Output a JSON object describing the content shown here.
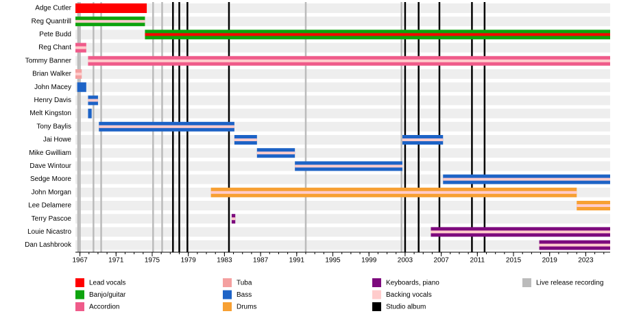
{
  "chart_data": {
    "type": "timeline",
    "xlim": [
      1966.5,
      2025.7
    ],
    "xticks": [
      1967,
      1971,
      1975,
      1979,
      1983,
      1987,
      1991,
      1995,
      1999,
      2003,
      2007,
      2011,
      2015,
      2019,
      2023
    ],
    "roles": [
      {
        "name": "Lead vocals",
        "color": "#ff0000"
      },
      {
        "name": "Banjo/guitar",
        "color": "#0ea30e"
      },
      {
        "name": "Accordion",
        "color": "#ef5b8a"
      },
      {
        "name": "Tuba",
        "color": "#f4a0a0"
      },
      {
        "name": "Bass",
        "color": "#1d63c6"
      },
      {
        "name": "Drums",
        "color": "#f7a033"
      },
      {
        "name": "Keyboards, piano",
        "color": "#7d0a7d"
      },
      {
        "name": "Backing vocals",
        "color": "#ffcccc"
      }
    ],
    "events": [
      {
        "name": "Studio album",
        "color": "#000000",
        "x": [
          1977.3,
          1978.0,
          1978.9,
          1983.5,
          2003.0,
          2004.5,
          2006.8,
          2010.4,
          2011.8
        ]
      },
      {
        "name": "Live release recording",
        "color": "#bbbbbb",
        "x": [
          1966.8,
          1967.0,
          1968.5,
          1969.35,
          1975.1,
          1976.1,
          1992.0,
          2002.6
        ]
      }
    ],
    "members": [
      {
        "name": "Adge Cutler",
        "bars": [
          {
            "role": "Lead vocals",
            "start": 1966.5,
            "end": 1974.4
          }
        ]
      },
      {
        "name": "Reg Quantrill",
        "bars": [
          {
            "role": "Banjo/guitar",
            "start": 1966.5,
            "end": 1974.2,
            "stripe": "Backing vocals"
          }
        ]
      },
      {
        "name": "Pete Budd",
        "bars": [
          {
            "role": "Banjo/guitar",
            "start": 1974.2,
            "end": 2025.7,
            "stripe": "Lead vocals"
          }
        ]
      },
      {
        "name": "Reg Chant",
        "bars": [
          {
            "role": "Accordion",
            "start": 1966.5,
            "end": 1967.7,
            "stripe": "Backing vocals"
          }
        ]
      },
      {
        "name": "Tommy Banner",
        "bars": [
          {
            "role": "Accordion",
            "start": 1967.9,
            "end": 2025.7,
            "stripe": "Backing vocals"
          }
        ]
      },
      {
        "name": "Brian Walker",
        "bars": [
          {
            "role": "Tuba",
            "start": 1966.5,
            "end": 1967.2,
            "stripe": "Backing vocals"
          }
        ]
      },
      {
        "name": "John Macey",
        "bars": [
          {
            "role": "Bass",
            "start": 1966.7,
            "end": 1967.7
          }
        ]
      },
      {
        "name": "Henry Davis",
        "bars": [
          {
            "role": "Bass",
            "start": 1967.9,
            "end": 1969.0,
            "stripe": "Backing vocals"
          }
        ]
      },
      {
        "name": "Melt Kingston",
        "bars": [
          {
            "role": "Bass",
            "start": 1967.9,
            "end": 1968.3
          }
        ]
      },
      {
        "name": "Tony Baylis",
        "bars": [
          {
            "role": "Bass",
            "start": 1969.1,
            "end": 1984.1,
            "stripe": "Backing vocals"
          }
        ]
      },
      {
        "name": "Jai Howe",
        "bars": [
          {
            "role": "Bass",
            "start": 1984.1,
            "end": 1986.6,
            "stripe": "Backing vocals"
          },
          {
            "role": "Bass",
            "start": 2002.7,
            "end": 2007.2,
            "stripe": "Backing vocals"
          }
        ]
      },
      {
        "name": "Mike Gwilliam",
        "bars": [
          {
            "role": "Bass",
            "start": 1986.6,
            "end": 1990.8,
            "stripe": "Backing vocals"
          }
        ]
      },
      {
        "name": "Dave Wintour",
        "bars": [
          {
            "role": "Bass",
            "start": 1990.8,
            "end": 2002.7,
            "stripe": "Backing vocals"
          }
        ]
      },
      {
        "name": "Sedge Moore",
        "bars": [
          {
            "role": "Bass",
            "start": 2007.2,
            "end": 2025.7,
            "stripe": "Backing vocals"
          }
        ]
      },
      {
        "name": "John Morgan",
        "bars": [
          {
            "role": "Drums",
            "start": 1981.5,
            "end": 2022.0,
            "stripe": "Backing vocals"
          }
        ]
      },
      {
        "name": "Lee Delamere",
        "bars": [
          {
            "role": "Drums",
            "start": 2022.0,
            "end": 2025.7,
            "stripe": "Backing vocals"
          }
        ]
      },
      {
        "name": "Terry Pascoe",
        "bars": [
          {
            "role": "Keyboards, piano",
            "start": 1983.8,
            "end": 1984.2,
            "stripe": "Backing vocals"
          }
        ]
      },
      {
        "name": "Louie Nicastro",
        "bars": [
          {
            "role": "Keyboards, piano",
            "start": 2005.85,
            "end": 2025.7,
            "stripe": "Backing vocals"
          }
        ]
      },
      {
        "name": "Dan Lashbrook",
        "bars": [
          {
            "role": "Keyboards, piano",
            "start": 2017.85,
            "end": 2025.7,
            "stripe": "Backing vocals"
          }
        ]
      }
    ]
  }
}
